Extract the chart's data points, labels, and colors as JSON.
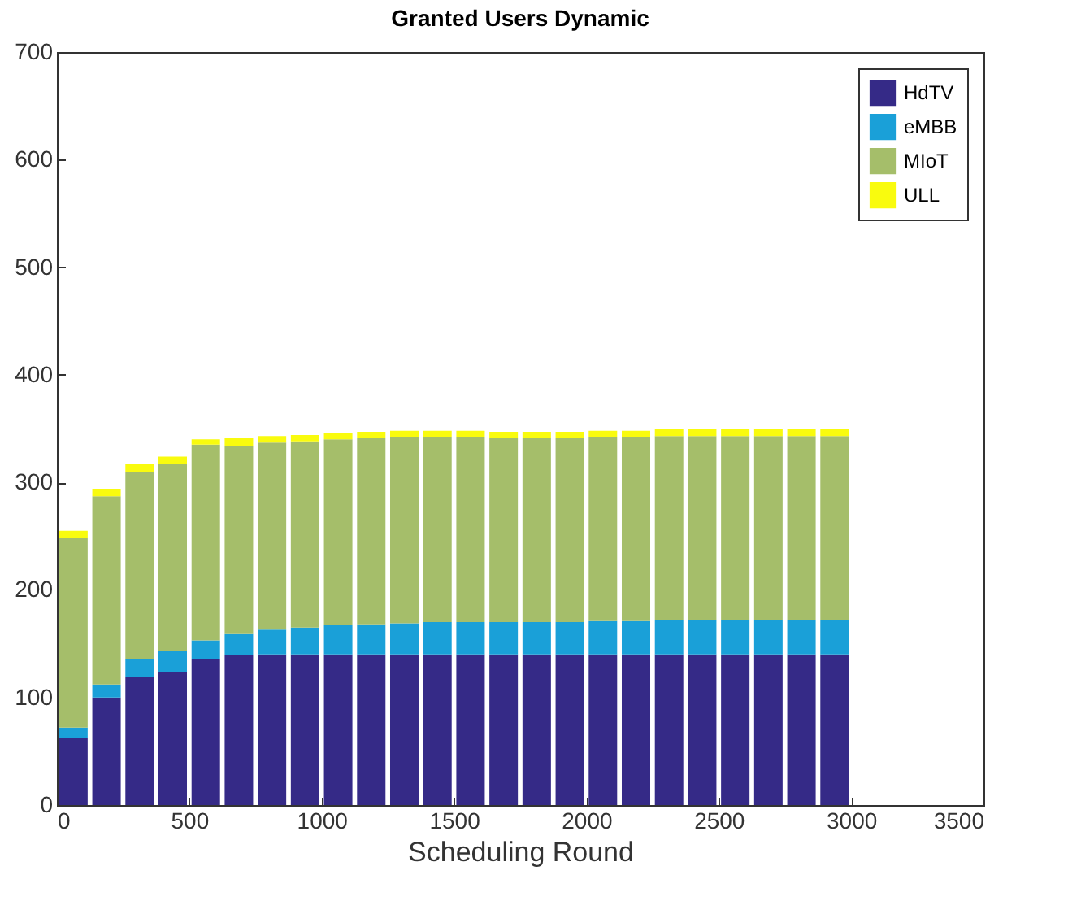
{
  "chart_data": {
    "type": "bar",
    "title": "Granted Users Dynamic",
    "xlabel": "Scheduling Round",
    "stacked": true,
    "x": [
      62.5,
      187.5,
      312.5,
      437.5,
      562.5,
      687.5,
      812.5,
      937.5,
      1062.5,
      1187.5,
      1312.5,
      1437.5,
      1562.5,
      1687.5,
      1812.5,
      1937.5,
      2062.5,
      2187.5,
      2312.5,
      2437.5,
      2562.5,
      2687.5,
      2812.5,
      2937.5
    ],
    "series": [
      {
        "name": "HdTV",
        "color": "#352a87",
        "values": [
          62,
          100,
          119,
          124,
          136,
          139,
          140,
          140,
          140,
          140,
          140,
          140,
          140,
          140,
          140,
          140,
          140,
          140,
          140,
          140,
          140,
          140,
          140,
          140
        ]
      },
      {
        "name": "eMBB",
        "color": "#1aa0d8",
        "values": [
          10,
          12,
          17,
          19,
          17,
          20,
          23,
          25,
          27,
          28,
          29,
          30,
          30,
          30,
          30,
          30,
          31,
          31,
          32,
          32,
          32,
          32,
          32,
          32
        ]
      },
      {
        "name": "MIoT",
        "color": "#a5be6a",
        "values": [
          176,
          175,
          174,
          174,
          182,
          175,
          174,
          173,
          173,
          173,
          173,
          172,
          172,
          171,
          171,
          171,
          171,
          171,
          171,
          171,
          171,
          171,
          171,
          171
        ]
      },
      {
        "name": "ULL",
        "color": "#f9fb0e",
        "values": [
          7,
          7,
          7,
          7,
          5,
          7,
          6,
          6,
          6,
          6,
          6,
          6,
          6,
          6,
          6,
          6,
          6,
          6,
          7,
          7,
          7,
          7,
          7,
          7
        ]
      }
    ],
    "xlim": [
      0,
      3500
    ],
    "xticks": [
      0,
      500,
      1000,
      1500,
      2000,
      2500,
      3000,
      3500
    ],
    "ylim": [
      0,
      700
    ],
    "yticks": [
      0,
      100,
      200,
      300,
      400,
      500,
      600,
      700
    ],
    "legend": "top right"
  }
}
